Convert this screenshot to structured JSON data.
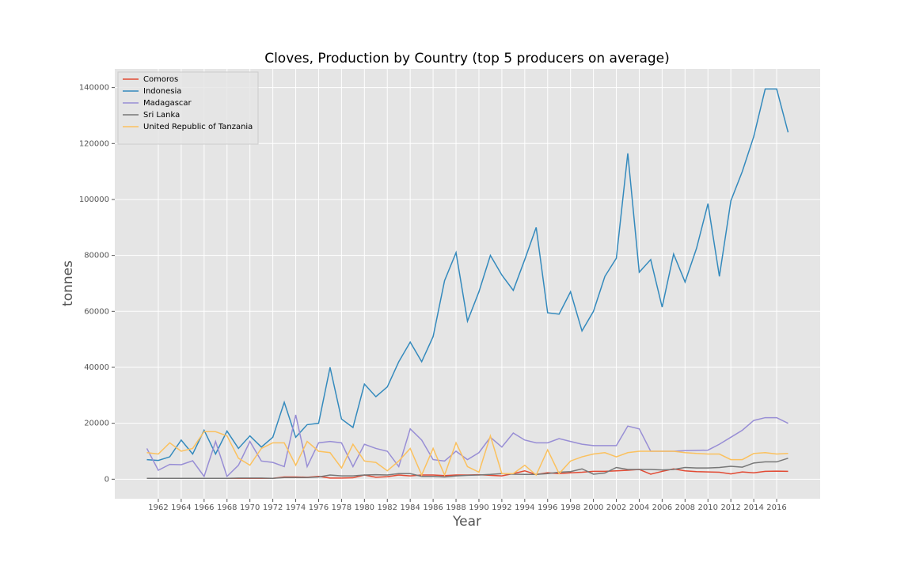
{
  "chart_data": {
    "type": "line",
    "title": "Cloves, Production by Country (top 5 producers on average)",
    "x_label": "Year",
    "y_label": "tonnes",
    "x": [
      1961,
      1962,
      1963,
      1964,
      1965,
      1966,
      1967,
      1968,
      1969,
      1970,
      1971,
      1972,
      1973,
      1974,
      1975,
      1976,
      1977,
      1978,
      1979,
      1980,
      1981,
      1982,
      1983,
      1984,
      1985,
      1986,
      1987,
      1988,
      1989,
      1990,
      1991,
      1992,
      1993,
      1994,
      1995,
      1996,
      1997,
      1998,
      1999,
      2000,
      2001,
      2002,
      2003,
      2004,
      2005,
      2006,
      2007,
      2008,
      2009,
      2010,
      2011,
      2012,
      2013,
      2014,
      2015,
      2016,
      2017
    ],
    "series": [
      {
        "name": "Comoros",
        "color": "#E24A33",
        "values": [
          300,
          300,
          300,
          300,
          300,
          300,
          300,
          300,
          300,
          300,
          300,
          300,
          800,
          800,
          700,
          1000,
          400,
          400,
          500,
          1500,
          700,
          900,
          1500,
          1200,
          1500,
          1500,
          1300,
          1500,
          1500,
          1600,
          1400,
          1200,
          2000,
          3000,
          1700,
          2300,
          2000,
          2300,
          2500,
          2800,
          2800,
          3000,
          3200,
          3500,
          1800,
          2800,
          3700,
          3000,
          2700,
          2600,
          2500,
          1900,
          2600,
          2300,
          2800,
          2900,
          2800
        ]
      },
      {
        "name": "Indonesia",
        "color": "#348ABD",
        "values": [
          7000,
          6700,
          8000,
          14000,
          9000,
          17500,
          9000,
          17200,
          11000,
          15500,
          11500,
          15000,
          27500,
          15000,
          19500,
          20000,
          40000,
          21500,
          18500,
          34000,
          29500,
          33000,
          42000,
          49000,
          42000,
          51000,
          71000,
          81000,
          56500,
          67000,
          80000,
          73000,
          67500,
          78500,
          90000,
          59500,
          59000,
          67000,
          53000,
          60000,
          72500,
          79000,
          116500,
          74000,
          78500,
          61500,
          80500,
          70500,
          82500,
          98500,
          72500,
          99500,
          110000,
          122500,
          139500,
          139500,
          124000
        ]
      },
      {
        "name": "Madagascar",
        "color": "#988ED5",
        "values": [
          11000,
          3200,
          5300,
          5200,
          6600,
          1000,
          13500,
          1000,
          5000,
          13500,
          6500,
          6000,
          4500,
          23000,
          4500,
          13000,
          13500,
          13000,
          4500,
          12500,
          11000,
          10000,
          4500,
          18000,
          14000,
          7000,
          6500,
          10000,
          7000,
          9500,
          15000,
          11500,
          16500,
          14000,
          13000,
          13000,
          14500,
          13500,
          12500,
          12000,
          12000,
          12000,
          19000,
          18000,
          10000,
          10000,
          10000,
          10200,
          10300,
          10400,
          12500,
          15000,
          17500,
          21000,
          22000,
          22000,
          20000
        ]
      },
      {
        "name": "Sri Lanka",
        "color": "#777777",
        "values": [
          300,
          300,
          300,
          300,
          300,
          300,
          300,
          300,
          400,
          400,
          400,
          300,
          600,
          600,
          600,
          800,
          1500,
          1200,
          1200,
          1500,
          1600,
          1500,
          2000,
          2000,
          1000,
          1000,
          800,
          1200,
          1400,
          1500,
          1700,
          2000,
          1800,
          1700,
          1700,
          2000,
          2500,
          2700,
          3700,
          1800,
          2200,
          4200,
          3500,
          3500,
          3500,
          3300,
          3500,
          4200,
          4000,
          4000,
          4200,
          4600,
          4300,
          5800,
          6200,
          6200,
          7500
        ]
      },
      {
        "name": "United Republic of Tanzania",
        "color": "#FBC15E",
        "values": [
          9500,
          9000,
          13000,
          10000,
          11000,
          17000,
          17000,
          15500,
          7500,
          5000,
          11000,
          13000,
          13000,
          5000,
          13500,
          10000,
          9500,
          4000,
          12500,
          6500,
          6000,
          3000,
          6500,
          11000,
          1500,
          11000,
          1500,
          13000,
          4500,
          2500,
          15500,
          2000,
          2000,
          5000,
          1500,
          10500,
          2000,
          6500,
          8000,
          9000,
          9500,
          8000,
          9500,
          10000,
          10000,
          10000,
          10000,
          9500,
          9200,
          9000,
          9000,
          7000,
          7000,
          9200,
          9500,
          9000,
          9200
        ]
      }
    ],
    "xlim": [
      1958.2,
      2019.8
    ],
    "xticks": [
      1962,
      1964,
      1966,
      1968,
      1970,
      1972,
      1974,
      1976,
      1978,
      1980,
      1982,
      1984,
      1986,
      1988,
      1990,
      1992,
      1994,
      1996,
      1998,
      2000,
      2002,
      2004,
      2006,
      2008,
      2010,
      2012,
      2014,
      2016
    ],
    "ylim": [
      -6985,
      146685
    ],
    "yticks": [
      0,
      20000,
      40000,
      60000,
      80000,
      100000,
      120000,
      140000
    ],
    "grid": true,
    "legend": "upper-left"
  }
}
